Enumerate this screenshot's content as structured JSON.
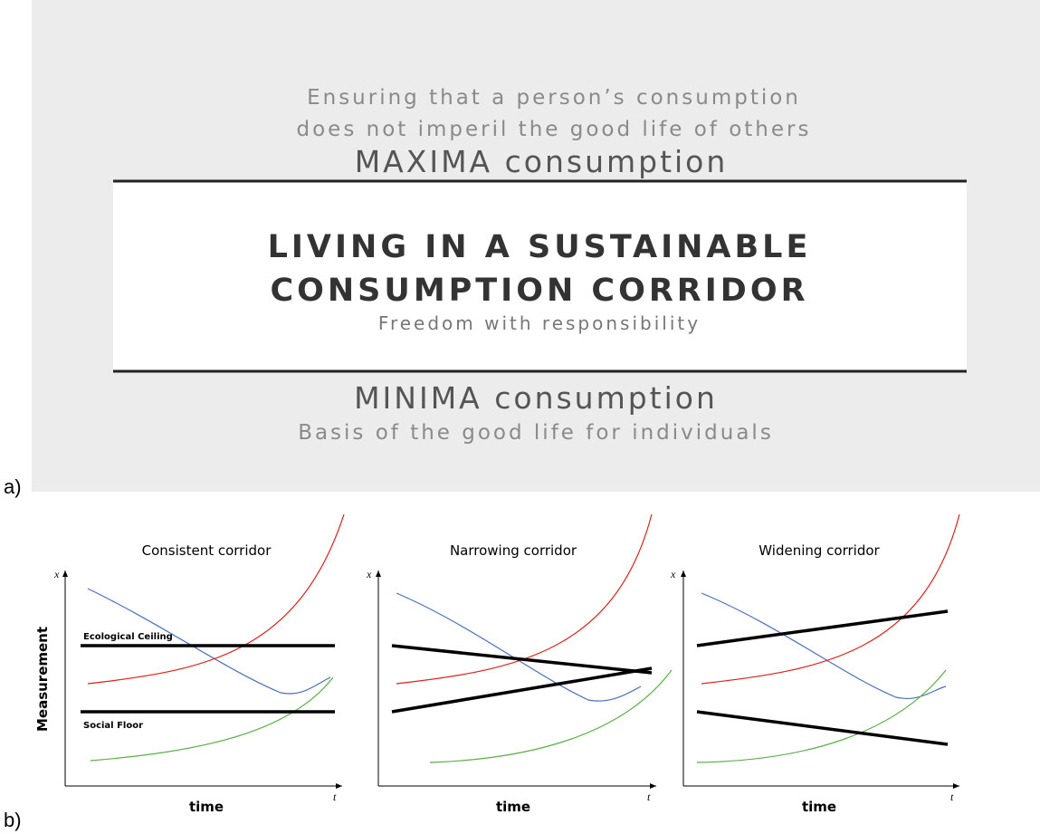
{
  "panel_a": {
    "label": "a)",
    "top_text": [
      "Ensuring that a person’s consumption",
      "does not imperil the good life of others"
    ],
    "maxima": "MAXIMA consumption",
    "center_title": [
      "LIVING IN A SUSTAINABLE",
      "CONSUMPTION CORRIDOR"
    ],
    "center_subtitle": "Freedom with responsibility",
    "minima": "MINIMA consumption",
    "bottom_text": "Basis of the good life for individuals"
  },
  "panel_b": {
    "label": "b)",
    "y_label": "Measurement",
    "panels": [
      {
        "title": "Consistent corridor",
        "y_axis": "x",
        "x_axis": "t",
        "x_label": "time",
        "annotations": [
          "Ecological Ceiling",
          "Social Floor"
        ]
      },
      {
        "title": "Narrowing corridor",
        "y_axis": "x",
        "x_axis": "t",
        "x_label": "time"
      },
      {
        "title": "Widening corridor",
        "y_axis": "x",
        "x_axis": "t",
        "x_label": "time"
      }
    ]
  }
}
